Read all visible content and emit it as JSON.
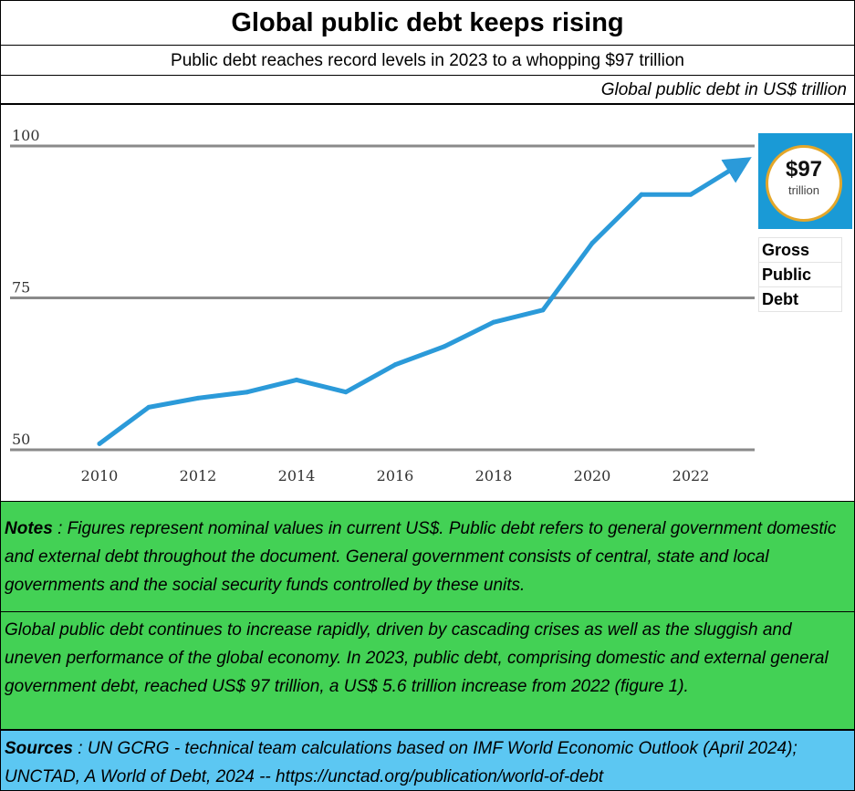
{
  "header": {
    "title": "Global public debt keeps rising",
    "subtitle": "Public debt reaches record levels in 2023 to a whopping $97 trillion",
    "unit_note": "Global public debt in US$ trillion"
  },
  "chart_data": {
    "type": "line",
    "title": "Global public debt keeps rising",
    "subtitle": "Public debt reaches record levels in 2023 to a whopping $97 trillion",
    "ylabel": "Global public debt in US$ trillion",
    "xlabel": "",
    "x": [
      2010,
      2011,
      2012,
      2013,
      2014,
      2015,
      2016,
      2017,
      2018,
      2019,
      2020,
      2021,
      2022,
      2023
    ],
    "x_tick_labels": [
      "2010",
      "2012",
      "2014",
      "2016",
      "2018",
      "2020",
      "2022"
    ],
    "y_tick_labels": [
      "50",
      "75",
      "100"
    ],
    "ylim": [
      50,
      100
    ],
    "grid": "horizontal lines at 50, 75 and 100",
    "color": "#2b9ad9",
    "series": [
      {
        "values": [
          51,
          57,
          58.5,
          59.5,
          61.5,
          59.5,
          64,
          67,
          71,
          73,
          84,
          92,
          92,
          97
        ]
      }
    ]
  },
  "badge": {
    "value": "$97",
    "unit": "trillion",
    "label_lines": [
      "Gross",
      "Public",
      "Debt"
    ],
    "background_color": "#1a9ad6",
    "ring_color": "#e4a72a"
  },
  "notes": {
    "label": "Notes",
    "text": " : Figures represent nominal values in current US$. Public debt refers to general government domestic and external debt throughout the document. General government consists of central, state and local governments and the social security funds controlled by these units.",
    "background_color": "#43d155"
  },
  "summary": {
    "text": "Global public debt continues to increase rapidly, driven by cascading crises as well as the sluggish and uneven performance of the global economy. In 2023, public debt, comprising domestic and external general government debt, reached US$ 97 trillion, a US$ 5.6 trillion increase from 2022 (figure 1)."
  },
  "sources": {
    "label": "Sources",
    "text": " : UN GCRG - technical team calculations based on IMF World Economic Outlook (April 2024); UNCTAD, A World of Debt, 2024 -- https://unctad.org/publication/world-of-debt",
    "background_color": "#5cc7f2"
  }
}
